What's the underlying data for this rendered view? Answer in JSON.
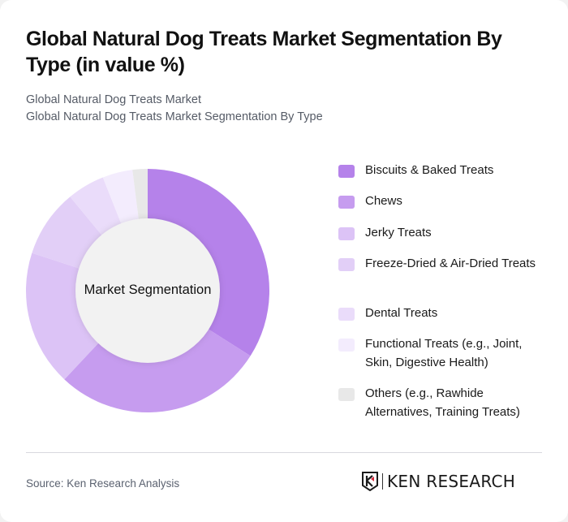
{
  "header": {
    "title": "Global Natural Dog Treats Market Segmentation By Type (in value %)",
    "subtitle_line1": "Global Natural Dog Treats Market",
    "subtitle_line2": "Global Natural Dog Treats Market Segmentation By Type"
  },
  "chart": {
    "center_label": "Market Segmentation"
  },
  "legend": [
    {
      "label": "Biscuits & Baked Treats",
      "color": "#b582ea"
    },
    {
      "label": "Chews",
      "color": "#c69cef"
    },
    {
      "label": "Jerky Treats",
      "color": "#dcc3f6"
    },
    {
      "label": "Freeze-Dried & Air-Dried Treats",
      "color": "#e2cff7"
    },
    {
      "label": "Dental Treats",
      "color": "#eadcfa"
    },
    {
      "label": "Functional Treats (e.g., Joint, Skin, Digestive Health)",
      "color": "#f3ecfd"
    },
    {
      "label": "Others (e.g., Rawhide Alternatives, Training Treats)",
      "color": "#e8e8e8"
    }
  ],
  "footer": {
    "source": "Source: Ken Research Analysis",
    "logo_text": "KEN RESEARCH"
  },
  "chart_data": {
    "type": "pie",
    "variant": "donut",
    "title": "Global Natural Dog Treats Market Segmentation By Type (in value %)",
    "subtitle": "Global Natural Dog Treats Market Segmentation By Type",
    "center_label": "Market Segmentation",
    "categories": [
      "Biscuits & Baked Treats",
      "Chews",
      "Jerky Treats",
      "Freeze-Dried & Air-Dried Treats",
      "Dental Treats",
      "Functional Treats (e.g., Joint, Skin, Digestive Health)",
      "Others (e.g., Rawhide Alternatives, Training Treats)"
    ],
    "values": [
      34,
      28,
      18,
      9,
      5,
      4,
      2
    ],
    "unit": "%",
    "colors": [
      "#b582ea",
      "#c69cef",
      "#dcc3f6",
      "#e2cff7",
      "#eadcfa",
      "#f3ecfd",
      "#e8e8e8"
    ],
    "legend_position": "right",
    "start_angle": "top, clockwise"
  }
}
